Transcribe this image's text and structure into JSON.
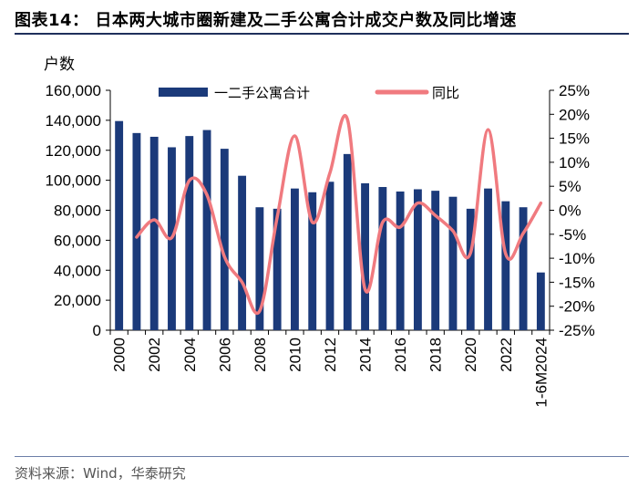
{
  "header": {
    "title": "图表14：  日本两大城市圈新建及二手公寓合计成交户数及同比增速"
  },
  "footer": {
    "source": "资料来源：Wind，华泰研究"
  },
  "colors": {
    "bar": "#1b3a7a",
    "line": "#f07a7f",
    "rule": "#1f2f5c"
  },
  "chart_data": {
    "type": "bar",
    "title": "日本两大城市圈新建及二手公寓合计成交户数及同比增速",
    "ylabel": "户数",
    "ylim": [
      0,
      160000
    ],
    "y2lim": [
      -25,
      25
    ],
    "y_ticks": [
      "0",
      "20,000",
      "40,000",
      "60,000",
      "80,000",
      "100,000",
      "120,000",
      "140,000",
      "160,000"
    ],
    "y2_ticks": [
      "-25%",
      "-20%",
      "-15%",
      "-10%",
      "-5%",
      "0%",
      "5%",
      "10%",
      "15%",
      "20%",
      "25%"
    ],
    "x_tick_labels": [
      "2000",
      "2002",
      "2004",
      "2006",
      "2008",
      "2010",
      "2012",
      "2014",
      "2016",
      "2018",
      "2020",
      "2022",
      "1-6M2024"
    ],
    "categories": [
      "2000",
      "2001",
      "2002",
      "2003",
      "2004",
      "2005",
      "2006",
      "2007",
      "2008",
      "2009",
      "2010",
      "2011",
      "2012",
      "2013",
      "2014",
      "2015",
      "2016",
      "2017",
      "2018",
      "2019",
      "2020",
      "2021",
      "2022",
      "2023",
      "1-6M2024"
    ],
    "series": [
      {
        "name": "一二手公寓合计",
        "type": "bar",
        "axis": "left",
        "values": [
          139500,
          131500,
          129000,
          122000,
          129500,
          133500,
          121000,
          103000,
          82000,
          81000,
          94500,
          92000,
          99000,
          117500,
          98000,
          95500,
          92500,
          94000,
          93000,
          89000,
          81000,
          94500,
          86000,
          82000,
          38500
        ]
      },
      {
        "name": "同比",
        "type": "line",
        "axis": "right",
        "values": [
          null,
          -5.6,
          -2.0,
          -5.7,
          6.2,
          3.2,
          -9.7,
          -15.0,
          -21.0,
          -1.4,
          15.5,
          -2.5,
          7.8,
          18.9,
          -16.5,
          -2.5,
          -3.5,
          1.5,
          -1.1,
          -4.3,
          -8.9,
          16.8,
          -9.1,
          -4.8,
          1.5
        ]
      }
    ],
    "legend_position": "top"
  }
}
